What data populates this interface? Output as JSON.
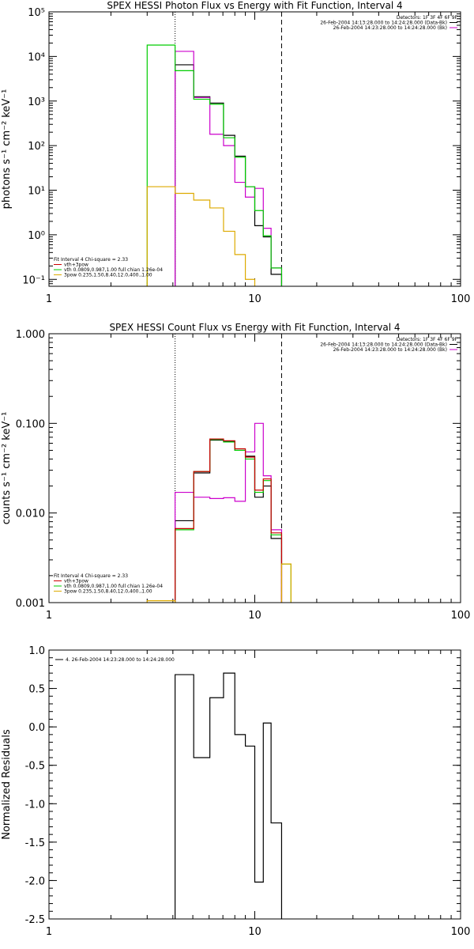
{
  "chart_data": [
    {
      "type": "line",
      "title": "SPEX HESSI Photon Flux vs Energy with Fit Function, Interval 4",
      "ylabel": "photons s⁻¹ cm⁻² keV⁻¹",
      "xscale": "log",
      "yscale": "log",
      "xlim": [
        1,
        100
      ],
      "ylim": [
        0.07,
        100000
      ],
      "xticks": [
        {
          "v": 1,
          "label": "1"
        },
        {
          "v": 10,
          "label": "10"
        },
        {
          "v": 100,
          "label": "100"
        }
      ],
      "yticks": [
        {
          "v": 0.1,
          "label": "10⁻¹"
        },
        {
          "v": 1,
          "label": "10⁰"
        },
        {
          "v": 10,
          "label": "10¹"
        },
        {
          "v": 100,
          "label": "10²"
        },
        {
          "v": 1000,
          "label": "10³"
        },
        {
          "v": 10000,
          "label": "10⁴"
        },
        {
          "v": 100000,
          "label": "10⁵"
        }
      ],
      "vlines": [
        {
          "x": 4.1,
          "style": "dotted"
        },
        {
          "x": 13.5,
          "style": "dashed"
        }
      ],
      "legend_top_right": [
        {
          "text": "Detectors: 1F 3F 4F 6F 9F",
          "color": "#000000",
          "line": false
        },
        {
          "text": "26-Feb-2004 14:13:28.000 to 14:24:28.000 (Data-Bk)",
          "color": "#000000",
          "line": true
        },
        {
          "text": "26-Feb-2004 14:23:28.000 to 14:24:28.000 (Bk)",
          "color": "#cc00cc",
          "line": true
        }
      ],
      "legend_bottom_left": [
        {
          "text": "Fit Interval 4   Chi-square = 2.33",
          "color": "#000000",
          "line": false
        },
        {
          "text": "vth+3pow",
          "color": "#cc0000",
          "line": true
        },
        {
          "text": "vth 0.0809,0.987,1.00  full chian 1.26e-04",
          "color": "#00cc00",
          "line": true
        },
        {
          "text": "3pow 0.235,1.50,8.40,12.0,400.,1.00",
          "color": "#ddaa00",
          "line": true
        }
      ],
      "series": [
        {
          "color": "#000000",
          "edges": [
            4.1,
            5.05,
            6.05,
            7.05,
            8.0,
            9.0,
            10.0,
            11.0,
            12.0,
            13.5
          ],
          "values": [
            6500,
            1250,
            900,
            170,
            58,
            12,
            1.6,
            0.9,
            0.13
          ]
        },
        {
          "color": "#cc00cc",
          "edges": [
            4.1,
            5.05,
            6.05,
            7.05,
            8.0,
            9.0,
            10.0,
            11.0,
            12.0,
            13.5
          ],
          "values": [
            13000,
            1200,
            180,
            100,
            15,
            7,
            11,
            1.4,
            0.18
          ]
        },
        {
          "color": "#00cc00",
          "edges": [
            3.0,
            4.1,
            5.05,
            6.05,
            7.05,
            8.0,
            9.0,
            10.0,
            11.0,
            12.0,
            13.5
          ],
          "values": [
            18000,
            4800,
            1100,
            850,
            150,
            55,
            12,
            3.5,
            0.95,
            0.18
          ]
        },
        {
          "color": "#ddaa00",
          "edges": [
            3.0,
            4.1,
            5.05,
            6.05,
            7.05,
            8.0,
            9.0,
            10.0
          ],
          "values": [
            12,
            8.5,
            6,
            4,
            1.2,
            0.36,
            0.1
          ]
        }
      ]
    },
    {
      "type": "line",
      "title": "SPEX HESSI Count Flux vs Energy with Fit Function, Interval 4",
      "ylabel": "counts s⁻¹ cm⁻² keV⁻¹",
      "xscale": "log",
      "yscale": "log",
      "xlim": [
        1,
        100
      ],
      "ylim": [
        0.001,
        1.0
      ],
      "xticks": [
        {
          "v": 1,
          "label": "1"
        },
        {
          "v": 10,
          "label": "10"
        },
        {
          "v": 100,
          "label": "100"
        }
      ],
      "yticks": [
        {
          "v": 0.001,
          "label": "0.001"
        },
        {
          "v": 0.01,
          "label": "0.010"
        },
        {
          "v": 0.1,
          "label": "0.100"
        },
        {
          "v": 1.0,
          "label": "1.000"
        }
      ],
      "vlines": [
        {
          "x": 4.1,
          "style": "dotted"
        },
        {
          "x": 13.5,
          "style": "dashed"
        }
      ],
      "legend_top_right": [
        {
          "text": "Detectors: 1F 3F 4F 6F 9F",
          "color": "#000000",
          "line": false
        },
        {
          "text": "26-Feb-2004 14:13:28.000 to 14:24:28.000 (Data-Bk)",
          "color": "#000000",
          "line": true
        },
        {
          "text": "26-Feb-2004 14:23:28.000 to 14:24:28.000 (Bk)",
          "color": "#cc00cc",
          "line": true
        }
      ],
      "legend_bottom_left": [
        {
          "text": "Fit Interval 4   Chi-square = 2.33",
          "color": "#000000",
          "line": false
        },
        {
          "text": "vth+3pow",
          "color": "#cc0000",
          "line": true
        },
        {
          "text": "vth 0.0809,0.987,1.00  full chian 1.26e-04",
          "color": "#00cc00",
          "line": true
        },
        {
          "text": "3pow 0.235,1.50,8.40,12.0,400.,1.00",
          "color": "#ddaa00",
          "line": true
        }
      ],
      "series": [
        {
          "color": "#000000",
          "edges": [
            4.1,
            5.05,
            6.05,
            7.05,
            8.0,
            9.0,
            10.0,
            11.0,
            12.0,
            13.5
          ],
          "values": [
            0.0082,
            0.028,
            0.065,
            0.063,
            0.05,
            0.043,
            0.015,
            0.02,
            0.0052
          ]
        },
        {
          "color": "#cc00cc",
          "edges": [
            4.1,
            5.05,
            6.05,
            7.05,
            8.0,
            9.0,
            10.0,
            11.0,
            12.0,
            13.5
          ],
          "values": [
            0.017,
            0.015,
            0.0145,
            0.0148,
            0.0135,
            0.048,
            0.1,
            0.026,
            0.0065
          ]
        },
        {
          "color": "#00cc00",
          "edges": [
            4.1,
            5.05,
            6.05,
            7.05,
            8.0,
            9.0,
            10.0,
            11.0,
            12.0,
            13.5,
            15.0
          ],
          "values": [
            0.0065,
            0.029,
            0.066,
            0.062,
            0.05,
            0.04,
            0.017,
            0.023,
            0.0057,
            0.0027
          ]
        },
        {
          "color": "#cc0000",
          "edges": [
            4.1,
            5.05,
            6.05,
            7.05,
            8.0,
            9.0,
            10.0,
            11.0,
            12.0,
            13.5
          ],
          "values": [
            0.0067,
            0.029,
            0.067,
            0.064,
            0.052,
            0.042,
            0.018,
            0.024,
            0.006
          ]
        },
        {
          "color": "#ddaa00",
          "edges": [
            3.0,
            4.1,
            13.5,
            15.0
          ],
          "values": [
            0.00105,
            null,
            0.0027
          ]
        }
      ]
    },
    {
      "type": "line",
      "title": "",
      "ylabel": "Normalized Residuals",
      "xscale": "log",
      "yscale": "linear",
      "xlim": [
        1,
        100
      ],
      "ylim": [
        -2.5,
        1.0
      ],
      "xticks": [
        {
          "v": 1,
          "label": "1"
        },
        {
          "v": 10,
          "label": "10"
        },
        {
          "v": 100,
          "label": "100"
        }
      ],
      "yticks": [
        {
          "v": 1.0,
          "label": "1.0"
        },
        {
          "v": 0.5,
          "label": "0.5"
        },
        {
          "v": 0.0,
          "label": "0.0"
        },
        {
          "v": -0.5,
          "label": "-0.5"
        },
        {
          "v": -1.0,
          "label": "-1.0"
        },
        {
          "v": -1.5,
          "label": "-1.5"
        },
        {
          "v": -2.0,
          "label": "-2.0"
        },
        {
          "v": -2.5,
          "label": "-2.5"
        }
      ],
      "vlines": [],
      "legend_top_left": [
        {
          "text": "4. 26-Feb-2004 14:23:28.000 to 14:24:28.000",
          "color": "#000000",
          "line": true
        }
      ],
      "series": [
        {
          "color": "#000000",
          "edges": [
            4.1,
            5.05,
            6.05,
            7.05,
            8.0,
            9.0,
            10.0,
            11.0,
            12.0,
            13.5
          ],
          "values": [
            0.68,
            -0.4,
            0.38,
            0.7,
            -0.1,
            -0.25,
            -2.02,
            0.05,
            -1.25
          ],
          "drop_to": -2.5
        }
      ]
    }
  ]
}
